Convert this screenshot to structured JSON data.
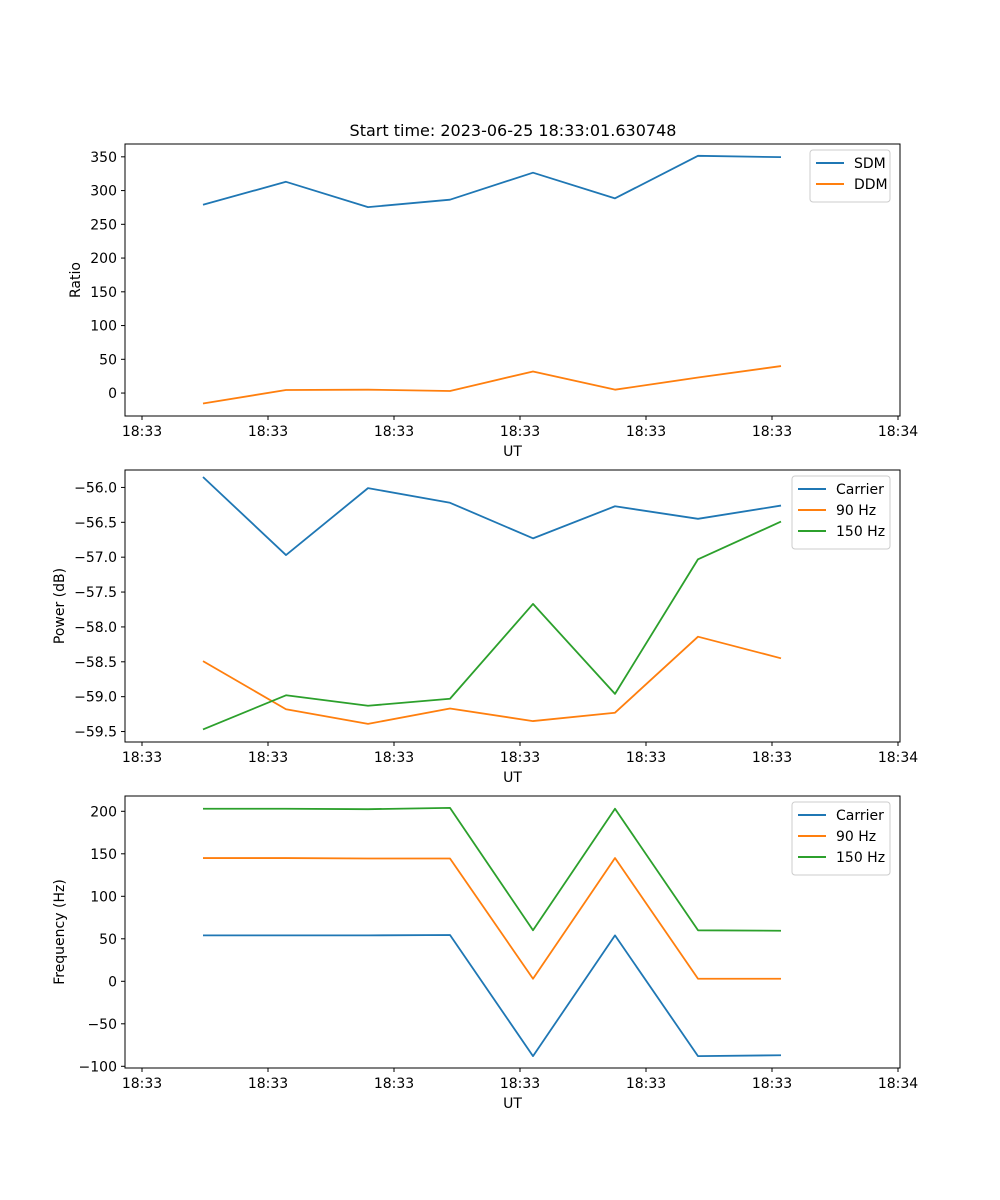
{
  "figure": {
    "title": "Start time: 2023-06-25 18:33:01.630748"
  },
  "chart_data": [
    {
      "type": "line",
      "title": "Start time: 2023-06-25 18:33:01.630748",
      "xlabel": "UT",
      "ylabel": "Ratio",
      "x": [
        "18:33",
        "18:33",
        "18:33",
        "18:33",
        "18:33",
        "18:33",
        "18:33",
        "18:33"
      ],
      "x_ticks": [
        "18:33",
        "18:33",
        "18:33",
        "18:33",
        "18:33",
        "18:33",
        "18:33"
      ],
      "x_ticks_extra": "18:34",
      "ylim": [
        -34,
        369
      ],
      "y_ticks": [
        0,
        50,
        100,
        150,
        200,
        250,
        300,
        350
      ],
      "y_tick_labels": [
        "0",
        "50",
        "100",
        "150",
        "200",
        "250",
        "300",
        "350"
      ],
      "grid": false,
      "legend": "top-right",
      "series": [
        {
          "name": "SDM",
          "color": "#1f77b4",
          "values": [
            279,
            313,
            275.5,
            286.5,
            326.5,
            288.5,
            351.5,
            349.5
          ]
        },
        {
          "name": "DDM",
          "color": "#ff7f0e",
          "values": [
            -15.5,
            4.5,
            5,
            3,
            32,
            5,
            23,
            40
          ]
        }
      ]
    },
    {
      "type": "line",
      "title": "",
      "xlabel": "UT",
      "ylabel": "Power (dB)",
      "x": [
        "18:33",
        "18:33",
        "18:33",
        "18:33",
        "18:33",
        "18:33",
        "18:33",
        "18:33"
      ],
      "x_ticks": [
        "18:33",
        "18:33",
        "18:33",
        "18:33",
        "18:33",
        "18:33",
        "18:33"
      ],
      "x_ticks_extra": "18:34",
      "ylim": [
        -59.65,
        -55.75
      ],
      "y_ticks": [
        -56.0,
        -56.5,
        -57.0,
        -57.5,
        -58.0,
        -58.5,
        -59.0,
        -59.5
      ],
      "y_tick_labels": [
        "−56.0",
        "−56.5",
        "−57.0",
        "−57.5",
        "−58.0",
        "−58.5",
        "−59.0",
        "−59.5"
      ],
      "grid": false,
      "legend": "top-right",
      "series": [
        {
          "name": "Carrier",
          "color": "#1f77b4",
          "values": [
            -55.85,
            -56.97,
            -56.01,
            -56.22,
            -56.73,
            -56.27,
            -56.45,
            -56.26
          ]
        },
        {
          "name": "90 Hz",
          "color": "#ff7f0e",
          "values": [
            -58.49,
            -59.18,
            -59.39,
            -59.17,
            -59.35,
            -59.23,
            -58.14,
            -58.45
          ]
        },
        {
          "name": "150 Hz",
          "color": "#2ca02c",
          "values": [
            -59.47,
            -58.98,
            -59.13,
            -59.03,
            -57.67,
            -58.96,
            -57.03,
            -56.49
          ]
        }
      ]
    },
    {
      "type": "line",
      "title": "",
      "xlabel": "UT",
      "ylabel": "Frequency (Hz)",
      "x": [
        "18:33",
        "18:33",
        "18:33",
        "18:33",
        "18:33",
        "18:33",
        "18:33",
        "18:33"
      ],
      "x_ticks": [
        "18:33",
        "18:33",
        "18:33",
        "18:33",
        "18:33",
        "18:33",
        "18:33"
      ],
      "x_ticks_extra": "18:34",
      "ylim": [
        -102,
        218
      ],
      "y_ticks": [
        -100,
        -50,
        0,
        50,
        100,
        150,
        200
      ],
      "y_tick_labels": [
        "−100",
        "−50",
        "0",
        "50",
        "100",
        "150",
        "200"
      ],
      "grid": false,
      "legend": "top-right",
      "series": [
        {
          "name": "Carrier",
          "color": "#1f77b4",
          "values": [
            54,
            54,
            54,
            54.5,
            -88,
            54,
            -88,
            -87
          ]
        },
        {
          "name": "90 Hz",
          "color": "#ff7f0e",
          "values": [
            145,
            145,
            144.5,
            144.5,
            3,
            145,
            3,
            3
          ]
        },
        {
          "name": "150 Hz",
          "color": "#2ca02c",
          "values": [
            203,
            203,
            202.5,
            204,
            60,
            203,
            60,
            59.5
          ]
        }
      ]
    }
  ]
}
